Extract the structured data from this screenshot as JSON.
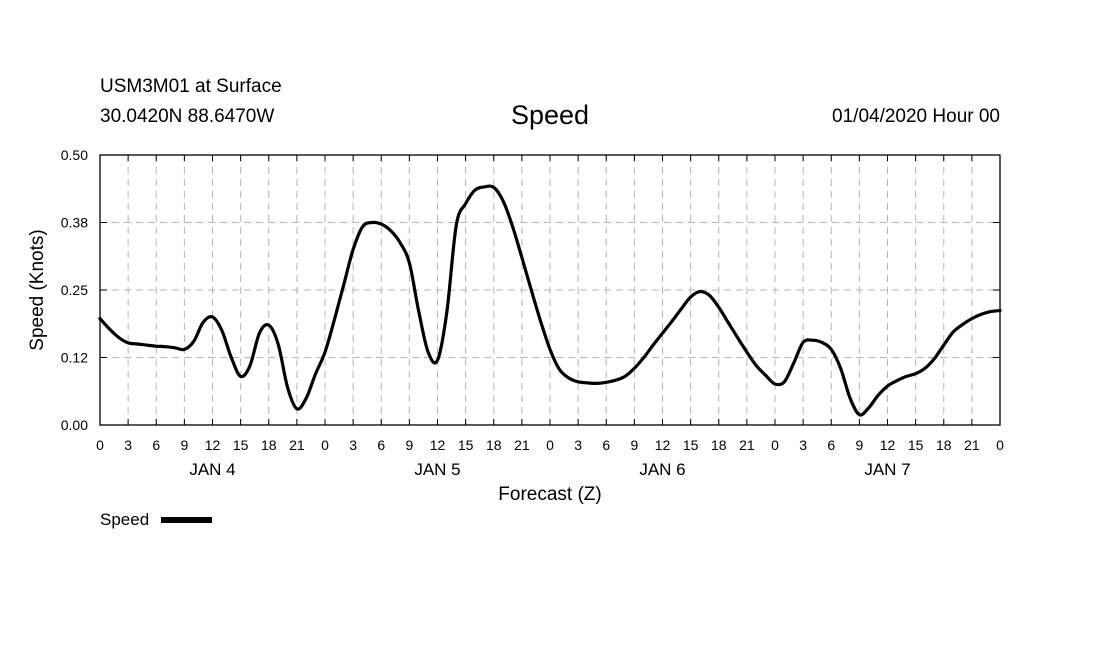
{
  "header": {
    "station": "USM3M01 at Surface",
    "location": "30.0420N 88.6470W",
    "title": "Speed",
    "datetime": "01/04/2020 Hour 00"
  },
  "chart_data": {
    "type": "line",
    "title": "Speed",
    "xlabel": "Forecast (Z)",
    "ylabel": "Speed (Knots)",
    "ylim": [
      0,
      0.5
    ],
    "xlim_hours": [
      0,
      96
    ],
    "y_ticks": [
      "0.00",
      "0.12",
      "0.25",
      "0.38",
      "0.50"
    ],
    "y_tick_values": [
      0,
      0.125,
      0.25,
      0.375,
      0.5
    ],
    "x_tick_hours": [
      0,
      3,
      6,
      9,
      12,
      15,
      18,
      21,
      24,
      27,
      30,
      33,
      36,
      39,
      42,
      45,
      48,
      51,
      54,
      57,
      60,
      63,
      66,
      69,
      72,
      75,
      78,
      81,
      84,
      87,
      90,
      93,
      96
    ],
    "x_tick_labels": [
      "0",
      "3",
      "6",
      "9",
      "12",
      "15",
      "18",
      "21",
      "0",
      "3",
      "6",
      "9",
      "12",
      "15",
      "18",
      "21",
      "0",
      "3",
      "6",
      "9",
      "12",
      "15",
      "18",
      "21",
      "0",
      "3",
      "6",
      "9",
      "12",
      "15",
      "18",
      "21",
      "0"
    ],
    "day_labels": [
      {
        "label": "JAN 4",
        "hour": 12
      },
      {
        "label": "JAN 5",
        "hour": 36
      },
      {
        "label": "JAN 6",
        "hour": 60
      },
      {
        "label": "JAN 7",
        "hour": 84
      }
    ],
    "grid": true,
    "legend_position": "bottom-left",
    "series": [
      {
        "name": "Speed",
        "color": "#000000",
        "x": [
          0,
          1,
          2,
          3,
          4,
          5,
          6,
          7,
          8,
          9,
          10,
          11,
          12,
          13,
          14,
          15,
          16,
          17,
          18,
          19,
          20,
          21,
          22,
          23,
          24,
          25,
          26,
          27,
          28,
          29,
          30,
          31,
          32,
          33,
          34,
          35,
          36,
          37,
          38,
          39,
          40,
          41,
          42,
          43,
          44,
          45,
          46,
          47,
          48,
          49,
          50,
          51,
          52,
          53,
          54,
          55,
          56,
          57,
          58,
          59,
          60,
          61,
          62,
          63,
          64,
          65,
          66,
          67,
          68,
          69,
          70,
          71,
          72,
          73,
          74,
          75,
          76,
          77,
          78,
          79,
          80,
          81,
          82,
          83,
          84,
          85,
          86,
          87,
          88,
          89,
          90,
          91,
          92,
          93,
          94,
          95,
          96
        ],
        "values": [
          0.197,
          0.178,
          0.162,
          0.152,
          0.15,
          0.148,
          0.146,
          0.145,
          0.143,
          0.14,
          0.155,
          0.19,
          0.2,
          0.175,
          0.125,
          0.09,
          0.11,
          0.17,
          0.185,
          0.15,
          0.07,
          0.03,
          0.05,
          0.095,
          0.135,
          0.195,
          0.26,
          0.325,
          0.367,
          0.375,
          0.372,
          0.36,
          0.338,
          0.3,
          0.21,
          0.135,
          0.12,
          0.21,
          0.37,
          0.41,
          0.435,
          0.441,
          0.44,
          0.415,
          0.368,
          0.31,
          0.25,
          0.192,
          0.14,
          0.103,
          0.087,
          0.08,
          0.078,
          0.077,
          0.079,
          0.083,
          0.09,
          0.105,
          0.125,
          0.148,
          0.17,
          0.192,
          0.215,
          0.237,
          0.247,
          0.24,
          0.218,
          0.19,
          0.162,
          0.135,
          0.11,
          0.092,
          0.076,
          0.08,
          0.115,
          0.153,
          0.157,
          0.153,
          0.14,
          0.105,
          0.05,
          0.019,
          0.032,
          0.055,
          0.072,
          0.082,
          0.09,
          0.095,
          0.105,
          0.123,
          0.148,
          0.172,
          0.186,
          0.197,
          0.205,
          0.21,
          0.212
        ]
      }
    ]
  },
  "legend": {
    "label": "Speed"
  }
}
